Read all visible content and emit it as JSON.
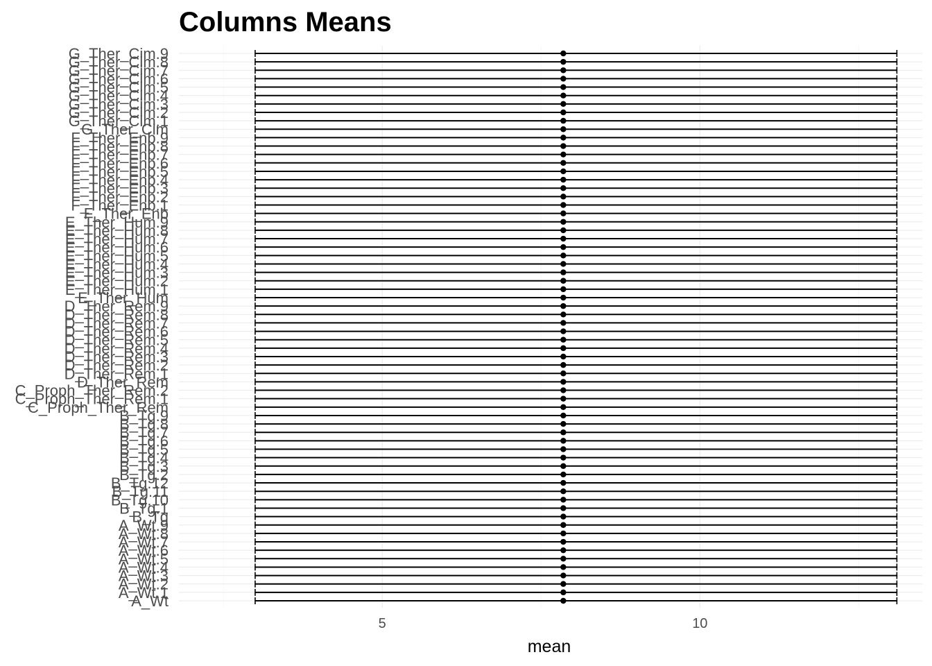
{
  "chart_data": {
    "type": "errorbar",
    "title": "Columns Means",
    "xlabel": "mean",
    "ylabel": "",
    "xlim": [
      1.8,
      13.5
    ],
    "xticks": [
      5,
      10
    ],
    "xtick_labels": [
      "5",
      "10"
    ],
    "grid": true,
    "legend": "none",
    "point_color": "#000000",
    "categories": [
      "A_Wt",
      "A_Wt.1",
      "A_Wt.2",
      "A_Wt.3",
      "A_Wt.4",
      "A_Wt.5",
      "A_Wt.6",
      "A_Wt.7",
      "A_Wt.8",
      "A_Wt.9",
      "B_Tg",
      "B_Tg.1",
      "B_Tg.10",
      "B_Tg.11",
      "B_Tg.12",
      "B_Tg.2",
      "B_Tg.3",
      "B_Tg.4",
      "B_Tg.5",
      "B_Tg.6",
      "B_Tg.7",
      "B_Tg.8",
      "B_Tg.9",
      "C_Proph_Ther_Rem",
      "C_Proph_Ther_Rem.1",
      "C_Proph_Ther_Rem.2",
      "D_Ther_Rem",
      "D_Ther_Rem.1",
      "D_Ther_Rem.2",
      "D_Ther_Rem.3",
      "D_Ther_Rem.4",
      "D_Ther_Rem.5",
      "D_Ther_Rem.6",
      "D_Ther_Rem.7",
      "D_Ther_Rem.8",
      "D_Ther_Rem.9",
      "E_Ther_Hum",
      "E_Ther_Hum.1",
      "E_Ther_Hum.2",
      "E_Ther_Hum.3",
      "E_Ther_Hum.4",
      "E_Ther_Hum.5",
      "E_Ther_Hum.6",
      "E_Ther_Hum.7",
      "E_Ther_Hum.8",
      "E_Ther_Hum.9",
      "F_Ther_Enb",
      "F_Ther_Enb.1",
      "F_Ther_Enb.2",
      "F_Ther_Enb.3",
      "F_Ther_Enb.4",
      "F_Ther_Enb.5",
      "F_Ther_Enb.6",
      "F_Ther_Enb.7",
      "F_Ther_Enb.8",
      "F_Ther_Enb.9",
      "G_Ther_Cim",
      "G_Ther_Cim.1",
      "G_Ther_Cim.2",
      "G_Ther_Cim.3",
      "G_Ther_Cim.4",
      "G_Ther_Cim.5",
      "G_Ther_Cim.6",
      "G_Ther_Cim.7",
      "G_Ther_Cim.8",
      "G_Ther_Cim.9"
    ],
    "mean": 7.85,
    "lower": 3.0,
    "upper": 13.1
  }
}
